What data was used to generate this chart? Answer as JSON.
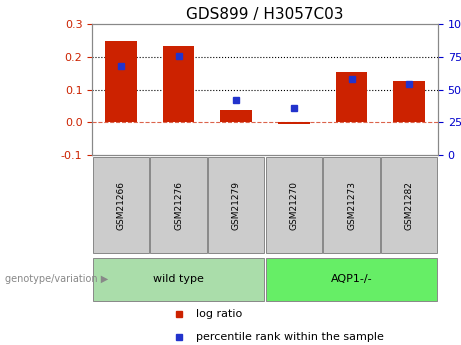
{
  "title": "GDS899 / H3057C03",
  "samples": [
    "GSM21266",
    "GSM21276",
    "GSM21279",
    "GSM21270",
    "GSM21273",
    "GSM21282"
  ],
  "log_ratio": [
    0.248,
    0.232,
    0.037,
    -0.004,
    0.155,
    0.127
  ],
  "percentile_rank": [
    0.68,
    0.76,
    0.42,
    0.36,
    0.58,
    0.54
  ],
  "bar_color": "#cc2200",
  "dot_color": "#2233cc",
  "ylim_left": [
    -0.1,
    0.3
  ],
  "yticks_left": [
    -0.1,
    0.0,
    0.1,
    0.2,
    0.3
  ],
  "yticks_right": [
    0,
    25,
    50,
    75,
    100
  ],
  "hline_y": [
    0.1,
    0.2
  ],
  "groups": [
    {
      "label": "wild type",
      "indices": [
        0,
        1,
        2
      ],
      "color": "#aaddaa"
    },
    {
      "label": "AQP1-/-",
      "indices": [
        3,
        4,
        5
      ],
      "color": "#66ee66"
    }
  ],
  "group_label": "genotype/variation",
  "legend_entries": [
    "log ratio",
    "percentile rank within the sample"
  ],
  "bg_color": "#ffffff",
  "plot_bg_color": "#ffffff",
  "tick_label_color_left": "#cc2200",
  "tick_label_color_right": "#0000cc",
  "sample_box_color": "#cccccc",
  "title_fontsize": 11,
  "axis_fontsize": 8,
  "legend_fontsize": 8,
  "sample_fontsize": 6.5,
  "group_fontsize": 8
}
